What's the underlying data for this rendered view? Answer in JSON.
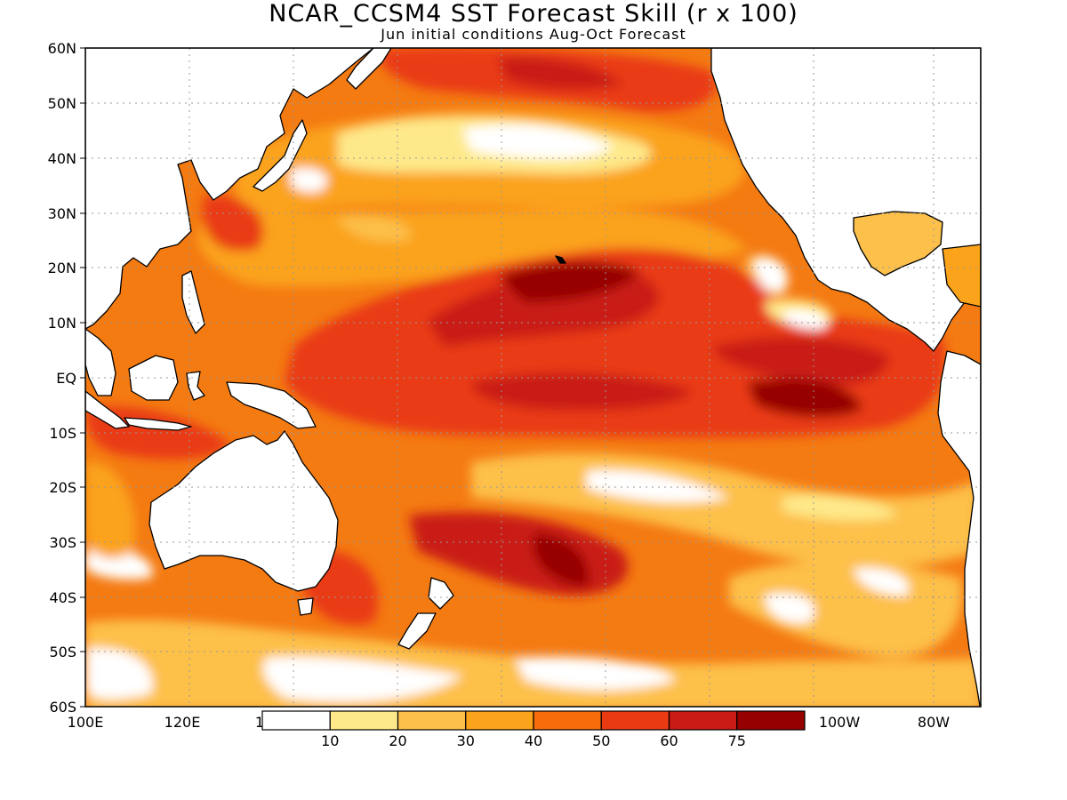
{
  "title": "NCAR_CCSM4 SST Forecast Skill (r x 100)",
  "subtitle": "Jun initial conditions  Aug-Oct Forecast",
  "lat_labels": [
    "60N",
    "50N",
    "40N",
    "30N",
    "20N",
    "10N",
    "EQ",
    "10S",
    "20S",
    "30S",
    "40S",
    "50S",
    "60S"
  ],
  "lon_labels": [
    "100E",
    "120E",
    "1",
    "100W",
    "80W"
  ],
  "colorbar": {
    "labels": [
      "10",
      "20",
      "30",
      "40",
      "50",
      "60",
      "75"
    ],
    "colors": [
      "#ffffff",
      "#fee98a",
      "#fdc04a",
      "#fba31b",
      "#f76d0c",
      "#e93a13",
      "#c91a14",
      "#960000"
    ]
  },
  "colors": {
    "ocean_base": "#f47a12",
    "land": "#ffffff",
    "coast": "#000000",
    "grid": "#999999"
  }
}
